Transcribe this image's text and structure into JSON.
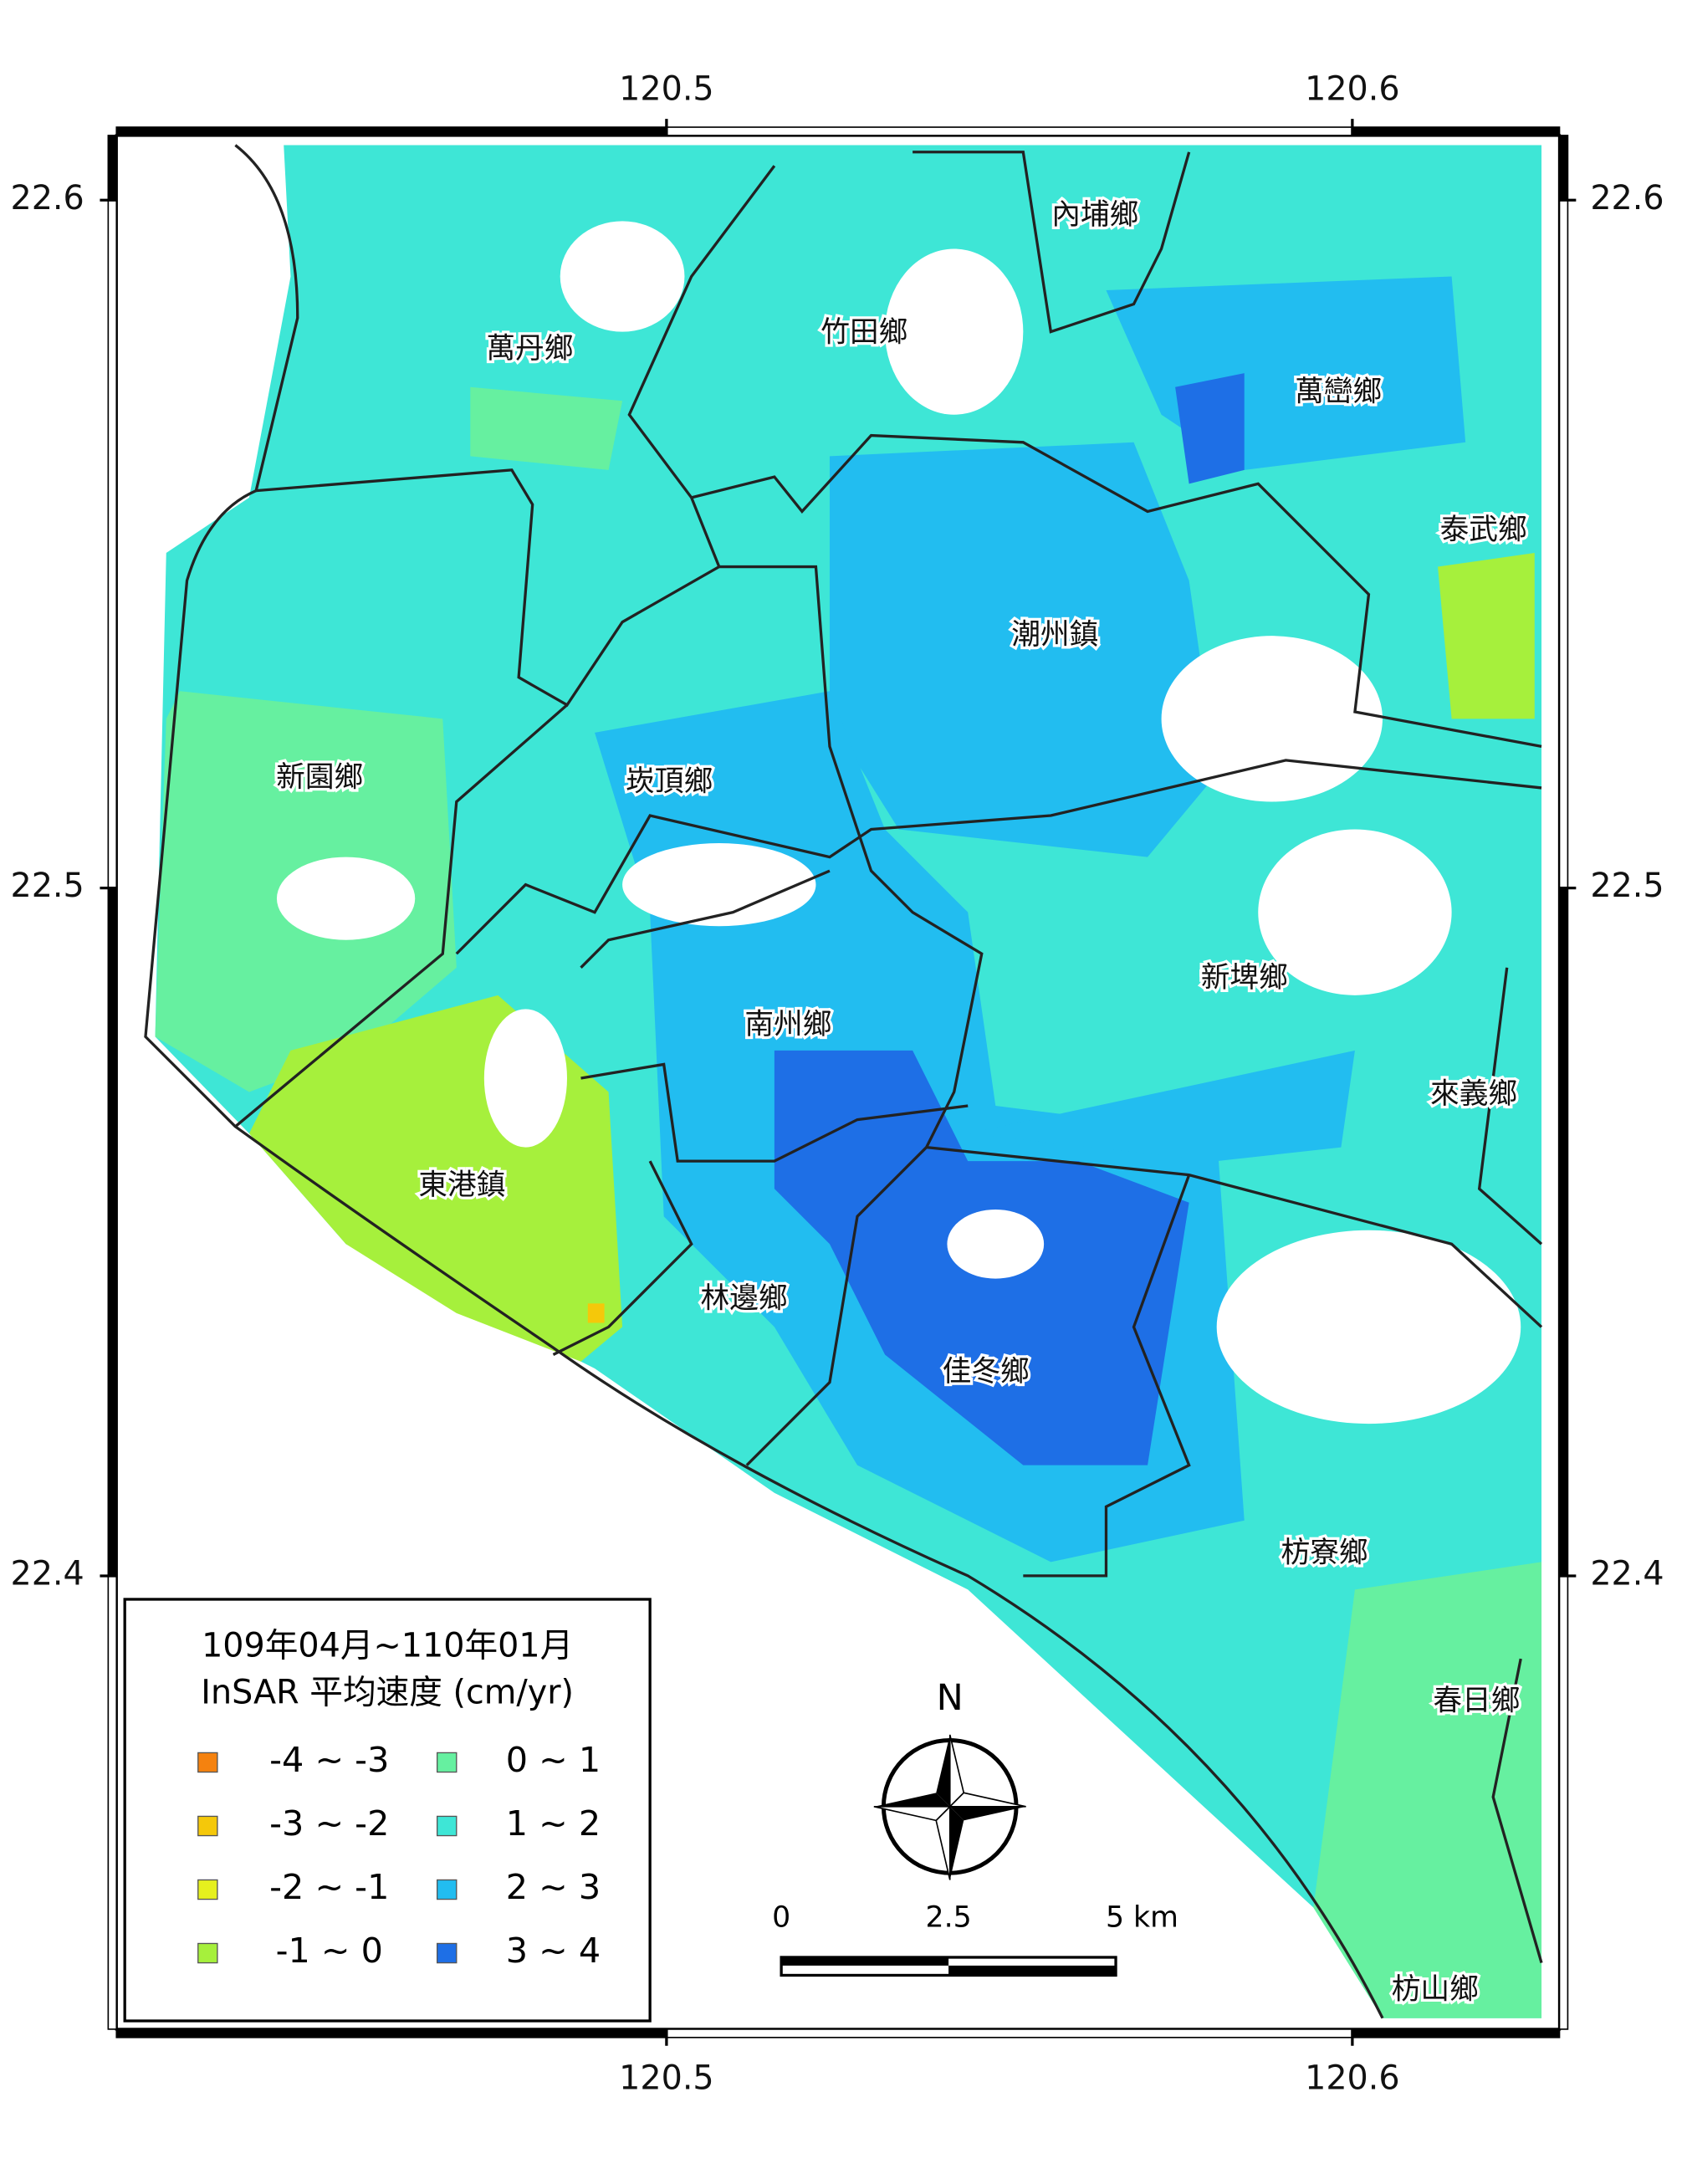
{
  "map": {
    "xlim": [
      120.4198,
      120.6302
    ],
    "ylim": [
      22.3341,
      22.6094
    ],
    "xticks": [
      120.5,
      120.6
    ],
    "yticks": [
      22.6,
      22.5,
      22.4
    ],
    "townships": [
      {
        "name": "萬丹鄉"
      },
      {
        "name": "竹田鄉"
      },
      {
        "name": "內埔鄉"
      },
      {
        "name": "萬巒鄉"
      },
      {
        "name": "泰武鄉"
      },
      {
        "name": "潮州鎮"
      },
      {
        "name": "新園鄉"
      },
      {
        "name": "崁頂鄉"
      },
      {
        "name": "南州鄉"
      },
      {
        "name": "新埤鄉"
      },
      {
        "name": "來義鄉"
      },
      {
        "name": "東港鎮"
      },
      {
        "name": "林邊鄉"
      },
      {
        "name": "佳冬鄉"
      },
      {
        "name": "枋寮鄉"
      },
      {
        "name": "春日鄉"
      },
      {
        "name": "枋山鄉"
      }
    ]
  },
  "legend": {
    "title": [
      "109年04月~110年01月",
      "InSAR 平均速度 (cm/yr)"
    ],
    "items": [
      {
        "label": "-4 ~ -3",
        "color": "#f5820f"
      },
      {
        "label": "-3 ~ -2",
        "color": "#f5c80a"
      },
      {
        "label": "-2 ~ -1",
        "color": "#e6f01e"
      },
      {
        "label": "-1 ~ 0",
        "color": "#a6f03c"
      },
      {
        "label": "0 ~ 1",
        "color": "#66f0a0"
      },
      {
        "label": "1 ~ 2",
        "color": "#3ee6d6"
      },
      {
        "label": "2 ~ 3",
        "color": "#22bdf0"
      },
      {
        "label": "3 ~ 4",
        "color": "#1e6fe6"
      }
    ]
  },
  "compass": {
    "label": "N"
  },
  "scale_bar": {
    "labels": [
      "0",
      "2.5",
      "5 km"
    ]
  }
}
